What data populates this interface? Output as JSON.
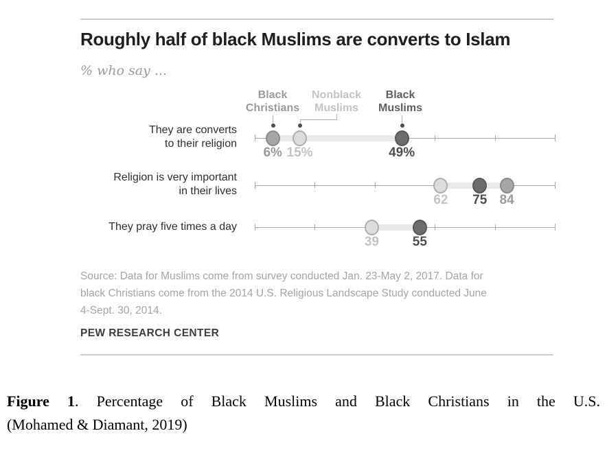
{
  "chart_data": {
    "type": "dot-plot",
    "title": "Roughly half of black Muslims are converts to Islam",
    "subtitle": "% who say ...",
    "axis": {
      "min": 0,
      "max": 100,
      "tick_step": 20,
      "grid": false
    },
    "legend_position": "top",
    "groups": [
      {
        "id": "black_christians",
        "label": "Black Christians",
        "label_color": "#9b9b9b",
        "dot_fill": "#a6a6a6",
        "dot_border": "#8a8a8a",
        "value_color": "#9b9b9b"
      },
      {
        "id": "nonblack_muslims",
        "label": "Nonblack Muslims",
        "label_color": "#c3c3c3",
        "dot_fill": "#dcdcdc",
        "dot_border": "#aeaeae",
        "value_color": "#c3c3c3"
      },
      {
        "id": "black_muslims",
        "label": "Black Muslims",
        "label_color": "#5e5e5e",
        "dot_fill": "#6d6d6d",
        "dot_border": "#565656",
        "value_color": "#4f4f4f"
      }
    ],
    "rows": [
      {
        "label": "They are converts to their religion",
        "label_lines": [
          "They are converts",
          "to their religion"
        ],
        "points": [
          {
            "group": "black_christians",
            "value": 6,
            "label": "6%"
          },
          {
            "group": "nonblack_muslims",
            "value": 15,
            "label": "15%"
          },
          {
            "group": "black_muslims",
            "value": 49,
            "label": "49%"
          }
        ]
      },
      {
        "label": "Religion is very important in their lives",
        "label_lines": [
          "Religion is very important",
          "in their lives"
        ],
        "points": [
          {
            "group": "nonblack_muslims",
            "value": 62,
            "label": "62"
          },
          {
            "group": "black_muslims",
            "value": 75,
            "label": "75"
          },
          {
            "group": "black_christians",
            "value": 84,
            "label": "84"
          }
        ]
      },
      {
        "label": "They pray five times a day",
        "label_lines": [
          "They pray five times a day"
        ],
        "points": [
          {
            "group": "nonblack_muslims",
            "value": 39,
            "label": "39"
          },
          {
            "group": "black_muslims",
            "value": 55,
            "label": "55"
          }
        ]
      }
    ],
    "source_lines": [
      "Source: Data for Muslims come from survey conducted Jan. 23-May 2, 2017. Data for",
      "black Christians come from the 2014 U.S. Religious Landscape Study conducted June",
      "4-Sept. 30, 2014."
    ],
    "branding": "PEW RESEARCH CENTER",
    "colors": {
      "axis": "#a6a6a6",
      "band": "#e9e9e9",
      "rule": "#cccccc",
      "leader_line": "#b3b3b3",
      "leader_dot": "#4d4d4d",
      "title": "#1f1f1f",
      "subtitle": "#9b9b9b",
      "row_label": "#2e2e2e",
      "source": "#a5a5a5",
      "branding": "#3d3d3d"
    }
  },
  "caption": {
    "figure_label": "Figure 1",
    "rest": ". Percentage of Black Muslims and Black Christians in the U.S.",
    "line2": "(Mohamed & Diamant, 2019)"
  }
}
